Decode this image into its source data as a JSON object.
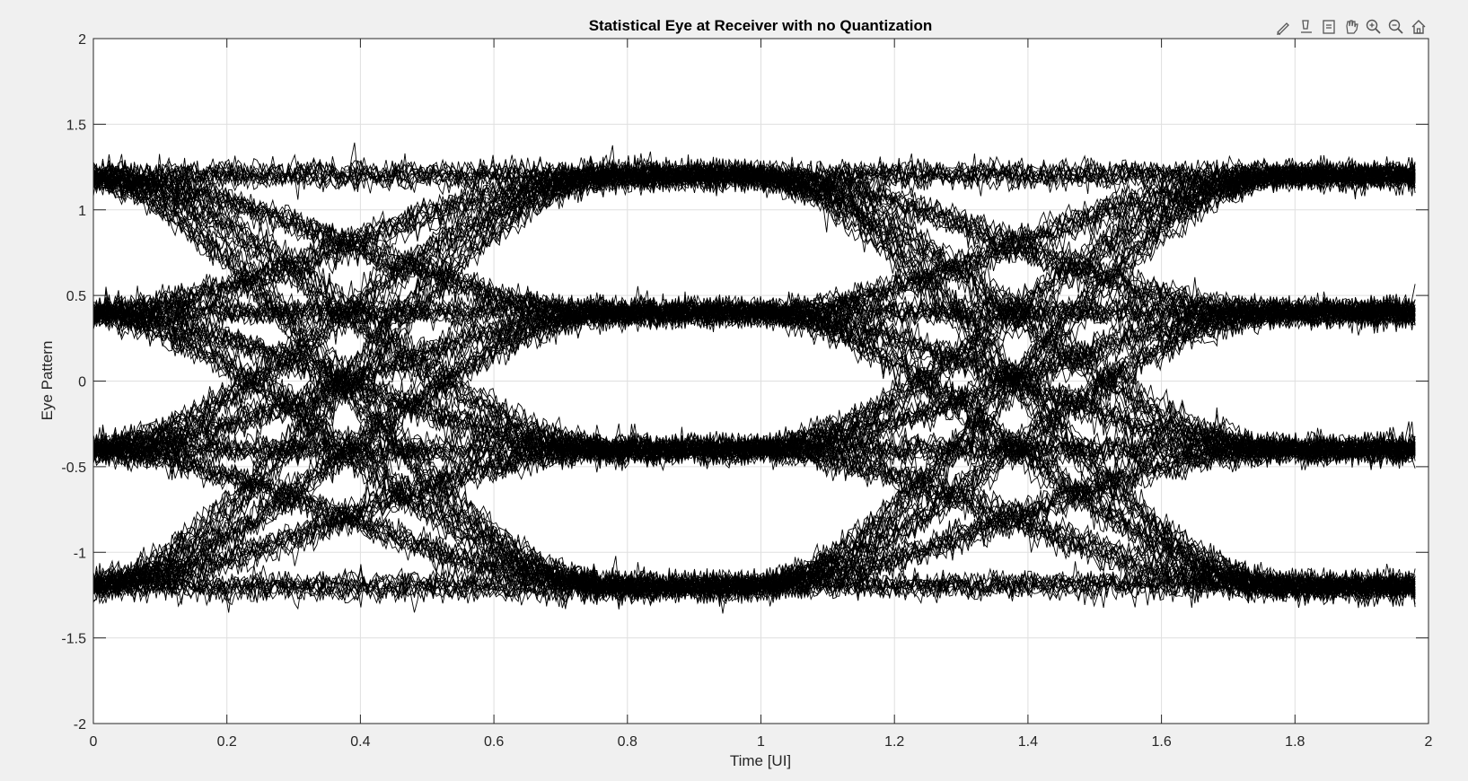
{
  "chart_data": {
    "type": "line",
    "title": "Statistical Eye at Receiver with no Quantization",
    "xlabel": "Time [UI]",
    "ylabel": "Eye Pattern",
    "xlim": [
      0,
      2
    ],
    "ylim": [
      -2,
      2
    ],
    "xticks": [
      0,
      0.2,
      0.4,
      0.6,
      0.8,
      1,
      1.2,
      1.4,
      1.6,
      1.8,
      2
    ],
    "xtick_labels": [
      "0",
      "0.2",
      "0.4",
      "0.6",
      "0.8",
      "1",
      "1.2",
      "1.4",
      "1.6",
      "1.8",
      "2"
    ],
    "yticks": [
      -2,
      -1.5,
      -1,
      -0.5,
      0,
      0.5,
      1,
      1.5,
      2
    ],
    "ytick_labels": [
      "-2",
      "-1.5",
      "-1",
      "-0.5",
      "0",
      "0.5",
      "1",
      "1.5",
      "2"
    ],
    "grid": true,
    "trace_color": "#000000",
    "x_end": 1.98,
    "symbol_levels": [
      -1.2,
      -0.4,
      0.4,
      1.2
    ],
    "transition_centers": [
      0.18,
      1.18
    ],
    "traces_per_transition": 9,
    "noise_amplitude": 0.07,
    "series_description": "PAM4 eye diagram: overlaid traces transitioning between levels -1.2, -0.4, 0.4, 1.2 with transitions near 0.18 UI and 1.18 UI"
  },
  "toolbar": {
    "icons": [
      "brush-icon",
      "datatip-icon",
      "rotate-icon",
      "pan-icon",
      "zoom-in-icon",
      "zoom-out-icon",
      "home-icon"
    ]
  }
}
